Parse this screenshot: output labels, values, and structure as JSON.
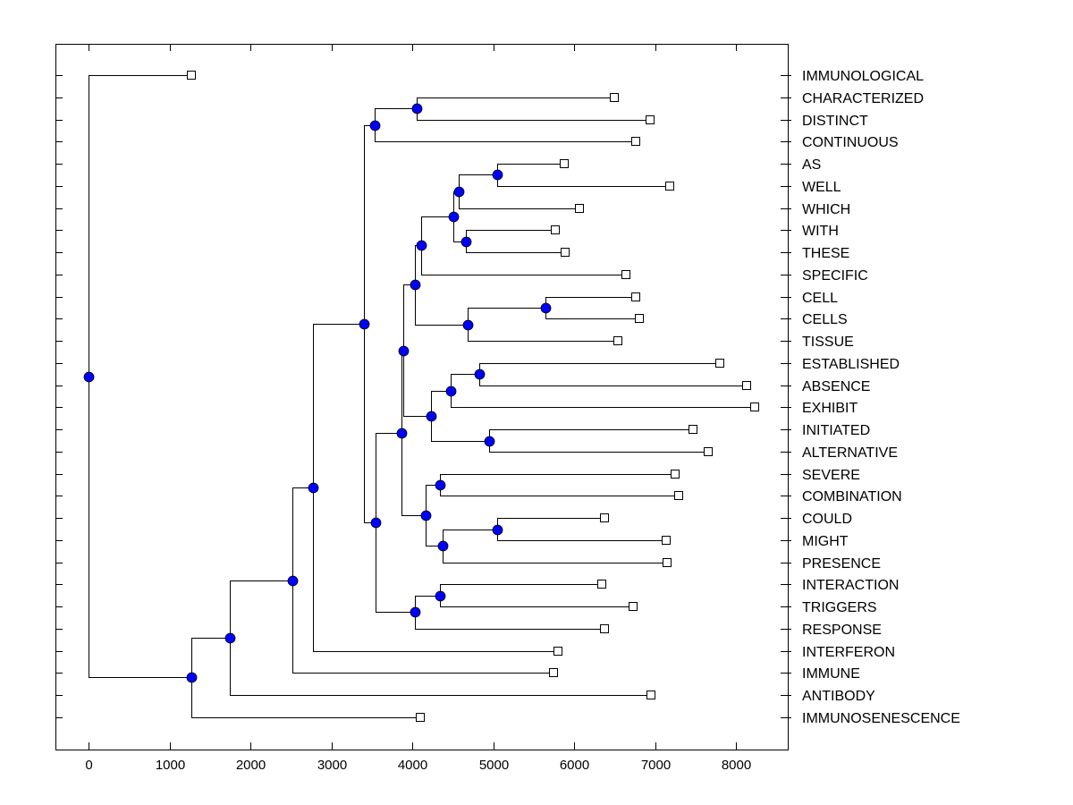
{
  "chart_data": {
    "type": "dendrogram",
    "title": "",
    "xlabel": "",
    "ylabel": "",
    "orientation": "horizontal",
    "xlim": [
      -410,
      8640
    ],
    "xticks": [
      0,
      1000,
      2000,
      3000,
      4000,
      5000,
      6000,
      7000,
      8000
    ],
    "xtick_labels": [
      "0",
      "1000",
      "2000",
      "3000",
      "4000",
      "5000",
      "6000",
      "7000",
      "8000"
    ],
    "grid": false,
    "legend": null,
    "colors": {
      "node": "#0000ff",
      "leaf": "#ffffff",
      "line": "#000000"
    },
    "leaves": [
      {
        "label": "IMMUNOLOGICAL",
        "value": 1273
      },
      {
        "label": "CHARACTERIZED",
        "value": 6496
      },
      {
        "label": "DISTINCT",
        "value": 6939
      },
      {
        "label": "CONTINUOUS",
        "value": 6762
      },
      {
        "label": "AS",
        "value": 5877
      },
      {
        "label": "WELL",
        "value": 7182
      },
      {
        "label": "WHICH",
        "value": 6065
      },
      {
        "label": "WITH",
        "value": 5766
      },
      {
        "label": "THESE",
        "value": 5888
      },
      {
        "label": "SPECIFIC",
        "value": 6640
      },
      {
        "label": "CELL",
        "value": 6762
      },
      {
        "label": "CELLS",
        "value": 6806
      },
      {
        "label": "TISSUE",
        "value": 6541
      },
      {
        "label": "ESTABLISHED",
        "value": 7802
      },
      {
        "label": "ABSENCE",
        "value": 8134
      },
      {
        "label": "EXHIBIT",
        "value": 8234
      },
      {
        "label": "INITIATED",
        "value": 7470
      },
      {
        "label": "ALTERNATIVE",
        "value": 7658
      },
      {
        "label": "SEVERE",
        "value": 7249
      },
      {
        "label": "COMBINATION",
        "value": 7293
      },
      {
        "label": "COULD",
        "value": 6375
      },
      {
        "label": "MIGHT",
        "value": 7138
      },
      {
        "label": "PRESENCE",
        "value": 7149
      },
      {
        "label": "INTERACTION",
        "value": 6341
      },
      {
        "label": "TRIGGERS",
        "value": 6729
      },
      {
        "label": "RESPONSE",
        "value": 6375
      },
      {
        "label": "INTERFERON",
        "value": 5799
      },
      {
        "label": "IMMUNE",
        "value": 5744
      },
      {
        "label": "ANTIBODY",
        "value": 6950
      },
      {
        "label": "IMMUNOSENESCENCE",
        "value": 4095
      }
    ],
    "nodes": [
      {
        "id": "root",
        "value": 0,
        "children": [
          "L0",
          "A"
        ]
      },
      {
        "id": "A",
        "value": 1273,
        "children": [
          "B",
          "L29"
        ]
      },
      {
        "id": "B",
        "value": 1749,
        "children": [
          "C",
          "L28"
        ]
      },
      {
        "id": "C",
        "value": 2523,
        "children": [
          "D",
          "L27"
        ]
      },
      {
        "id": "D",
        "value": 2767,
        "children": [
          "E",
          "L26"
        ]
      },
      {
        "id": "E",
        "value": 3398,
        "children": [
          "F",
          "G"
        ]
      },
      {
        "id": "F",
        "value": 3530,
        "children": [
          "F1",
          "L3"
        ]
      },
      {
        "id": "F1",
        "value": 4050,
        "children": [
          "L1",
          "L2"
        ]
      },
      {
        "id": "G",
        "value": 3541,
        "children": [
          "H",
          "I"
        ]
      },
      {
        "id": "H",
        "value": 3862,
        "children": [
          "J",
          "K"
        ]
      },
      {
        "id": "J",
        "value": 3884,
        "children": [
          "Lc",
          "M"
        ]
      },
      {
        "id": "Lc",
        "value": 4028,
        "children": [
          "N",
          "O"
        ]
      },
      {
        "id": "N",
        "value": 4106,
        "children": [
          "P",
          "L9"
        ]
      },
      {
        "id": "P",
        "value": 4504,
        "children": [
          "Q",
          "R"
        ]
      },
      {
        "id": "Q",
        "value": 4571,
        "children": [
          "S",
          "L6"
        ]
      },
      {
        "id": "S",
        "value": 5047,
        "children": [
          "L4",
          "L5"
        ]
      },
      {
        "id": "R",
        "value": 4659,
        "children": [
          "L7",
          "L8"
        ]
      },
      {
        "id": "O",
        "value": 4681,
        "children": [
          "T",
          "L12"
        ]
      },
      {
        "id": "T",
        "value": 5644,
        "children": [
          "L10",
          "L11"
        ]
      },
      {
        "id": "M",
        "value": 4228,
        "children": [
          "U",
          "V"
        ]
      },
      {
        "id": "U",
        "value": 4471,
        "children": [
          "W",
          "L15"
        ]
      },
      {
        "id": "W",
        "value": 4825,
        "children": [
          "L13",
          "L14"
        ]
      },
      {
        "id": "V",
        "value": 4947,
        "children": [
          "L16",
          "L17"
        ]
      },
      {
        "id": "K",
        "value": 4161,
        "children": [
          "X",
          "Y"
        ]
      },
      {
        "id": "X",
        "value": 4338,
        "children": [
          "L18",
          "L19"
        ]
      },
      {
        "id": "Y",
        "value": 4371,
        "children": [
          "Z",
          "L22"
        ]
      },
      {
        "id": "Z",
        "value": 5047,
        "children": [
          "L20",
          "L21"
        ]
      },
      {
        "id": "I",
        "value": 4028,
        "children": [
          "AA",
          "L25"
        ]
      },
      {
        "id": "AA",
        "value": 4338,
        "children": [
          "L23",
          "L24"
        ]
      }
    ]
  }
}
